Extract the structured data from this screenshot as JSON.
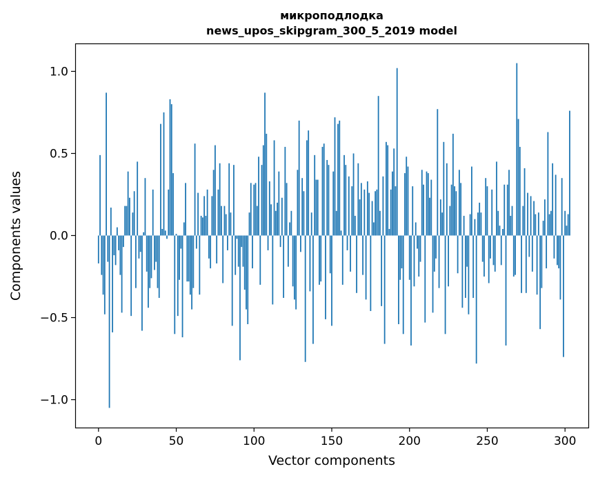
{
  "chart_data": {
    "type": "bar",
    "title": "микроподлодка",
    "subtitle": "news_upos_skipgram_300_5_2019 model",
    "xlabel": "Vector components",
    "ylabel": "Components values",
    "xlim": [
      -15,
      315
    ],
    "ylim": [
      -1.17,
      1.17
    ],
    "xticks": [
      0,
      50,
      100,
      150,
      200,
      250,
      300
    ],
    "xtick_labels": [
      "0",
      "50",
      "100",
      "150",
      "200",
      "250",
      "300"
    ],
    "yticks": [
      -1.0,
      -0.5,
      0.0,
      0.5,
      1.0
    ],
    "ytick_labels": [
      "−1.0",
      "−0.5",
      "0.0",
      "0.5",
      "1.0"
    ],
    "grid": false,
    "bar_color": "#1f77b4",
    "values": [
      -0.17,
      0.49,
      -0.24,
      -0.36,
      -0.48,
      0.87,
      -0.16,
      -1.05,
      0.17,
      -0.59,
      -0.12,
      -0.18,
      0.05,
      -0.09,
      -0.24,
      -0.47,
      -0.07,
      0.18,
      0.18,
      0.39,
      0.23,
      -0.49,
      0.14,
      0.27,
      -0.32,
      0.45,
      -0.14,
      -0.1,
      -0.58,
      0.02,
      0.35,
      -0.22,
      -0.44,
      -0.32,
      -0.26,
      0.28,
      -0.21,
      -0.16,
      -0.32,
      -0.38,
      0.68,
      0.04,
      0.75,
      0.03,
      -0.02,
      0.28,
      0.83,
      0.8,
      0.38,
      -0.6,
      0.01,
      -0.49,
      -0.27,
      -0.08,
      -0.62,
      0.08,
      0.32,
      -0.28,
      -0.28,
      -0.36,
      -0.45,
      -0.32,
      0.56,
      -0.08,
      0.26,
      -0.36,
      0.12,
      0.11,
      0.24,
      0.12,
      0.28,
      -0.14,
      -0.2,
      0.24,
      0.4,
      0.55,
      -0.17,
      0.28,
      0.44,
      0.18,
      -0.29,
      0.18,
      0.13,
      -0.09,
      0.44,
      0.14,
      -0.55,
      0.43,
      -0.24,
      -0.02,
      -0.19,
      -0.76,
      -0.07,
      -0.19,
      -0.33,
      -0.45,
      -0.54,
      0.14,
      0.32,
      -0.2,
      0.31,
      0.32,
      0.18,
      0.48,
      -0.3,
      0.43,
      0.55,
      0.87,
      0.62,
      -0.09,
      0.33,
      0.19,
      -0.42,
      0.58,
      0.15,
      0.2,
      0.39,
      -0.07,
      0.23,
      -0.38,
      0.54,
      0.32,
      -0.19,
      0.08,
      0.15,
      -0.31,
      -0.39,
      -0.45,
      0.4,
      0.7,
      -0.1,
      0.35,
      0.27,
      -0.77,
      0.58,
      0.64,
      -0.34,
      0.14,
      -0.66,
      0.49,
      0.34,
      0.34,
      -0.3,
      -0.28,
      0.54,
      0.56,
      -0.51,
      0.46,
      0.43,
      -0.23,
      -0.55,
      0.39,
      0.72,
      0.15,
      0.68,
      0.7,
      0.03,
      -0.3,
      0.49,
      0.43,
      -0.09,
      0.36,
      -0.22,
      0.3,
      0.5,
      0.12,
      -0.35,
      0.44,
      0.22,
      0.32,
      -0.24,
      0.28,
      -0.39,
      0.33,
      0.26,
      -0.46,
      0.21,
      0.08,
      0.27,
      0.28,
      0.85,
      0.15,
      -0.43,
      0.36,
      -0.66,
      0.57,
      0.55,
      0.04,
      0.28,
      0.39,
      0.53,
      0.3,
      1.02,
      -0.54,
      -0.27,
      -0.2,
      -0.6,
      0.38,
      0.48,
      0.42,
      -0.27,
      -0.67,
      0.3,
      -0.31,
      0.08,
      -0.08,
      -0.25,
      -0.16,
      0.4,
      0.31,
      -0.53,
      0.39,
      0.38,
      0.23,
      0.34,
      -0.47,
      -0.22,
      -0.14,
      0.77,
      -0.32,
      0.22,
      0.14,
      0.57,
      -0.6,
      0.44,
      -0.31,
      0.18,
      0.31,
      0.62,
      0.3,
      0.27,
      -0.23,
      0.4,
      0.32,
      -0.44,
      0.12,
      -0.38,
      -0.19,
      -0.48,
      0.13,
      0.42,
      -0.38,
      0.1,
      -0.78,
      0.14,
      0.2,
      0.14,
      -0.16,
      -0.25,
      0.35,
      0.3,
      -0.29,
      -0.14,
      0.28,
      -0.18,
      -0.22,
      0.45,
      0.15,
      0.06,
      -0.18,
      0.04,
      0.31,
      -0.67,
      0.31,
      0.4,
      0.12,
      0.18,
      -0.25,
      -0.24,
      1.05,
      0.71,
      0.54,
      -0.35,
      0.18,
      0.41,
      -0.35,
      0.26,
      -0.13,
      0.24,
      -0.22,
      0.21,
      0.13,
      -0.36,
      0.14,
      -0.57,
      -0.32,
      0.09,
      0.22,
      -0.2,
      0.63,
      0.13,
      0.15,
      0.44,
      -0.14,
      0.37,
      -0.18,
      -0.2,
      -0.39,
      0.35,
      -0.74,
      0.15,
      0.06,
      0.13,
      0.76
    ]
  }
}
